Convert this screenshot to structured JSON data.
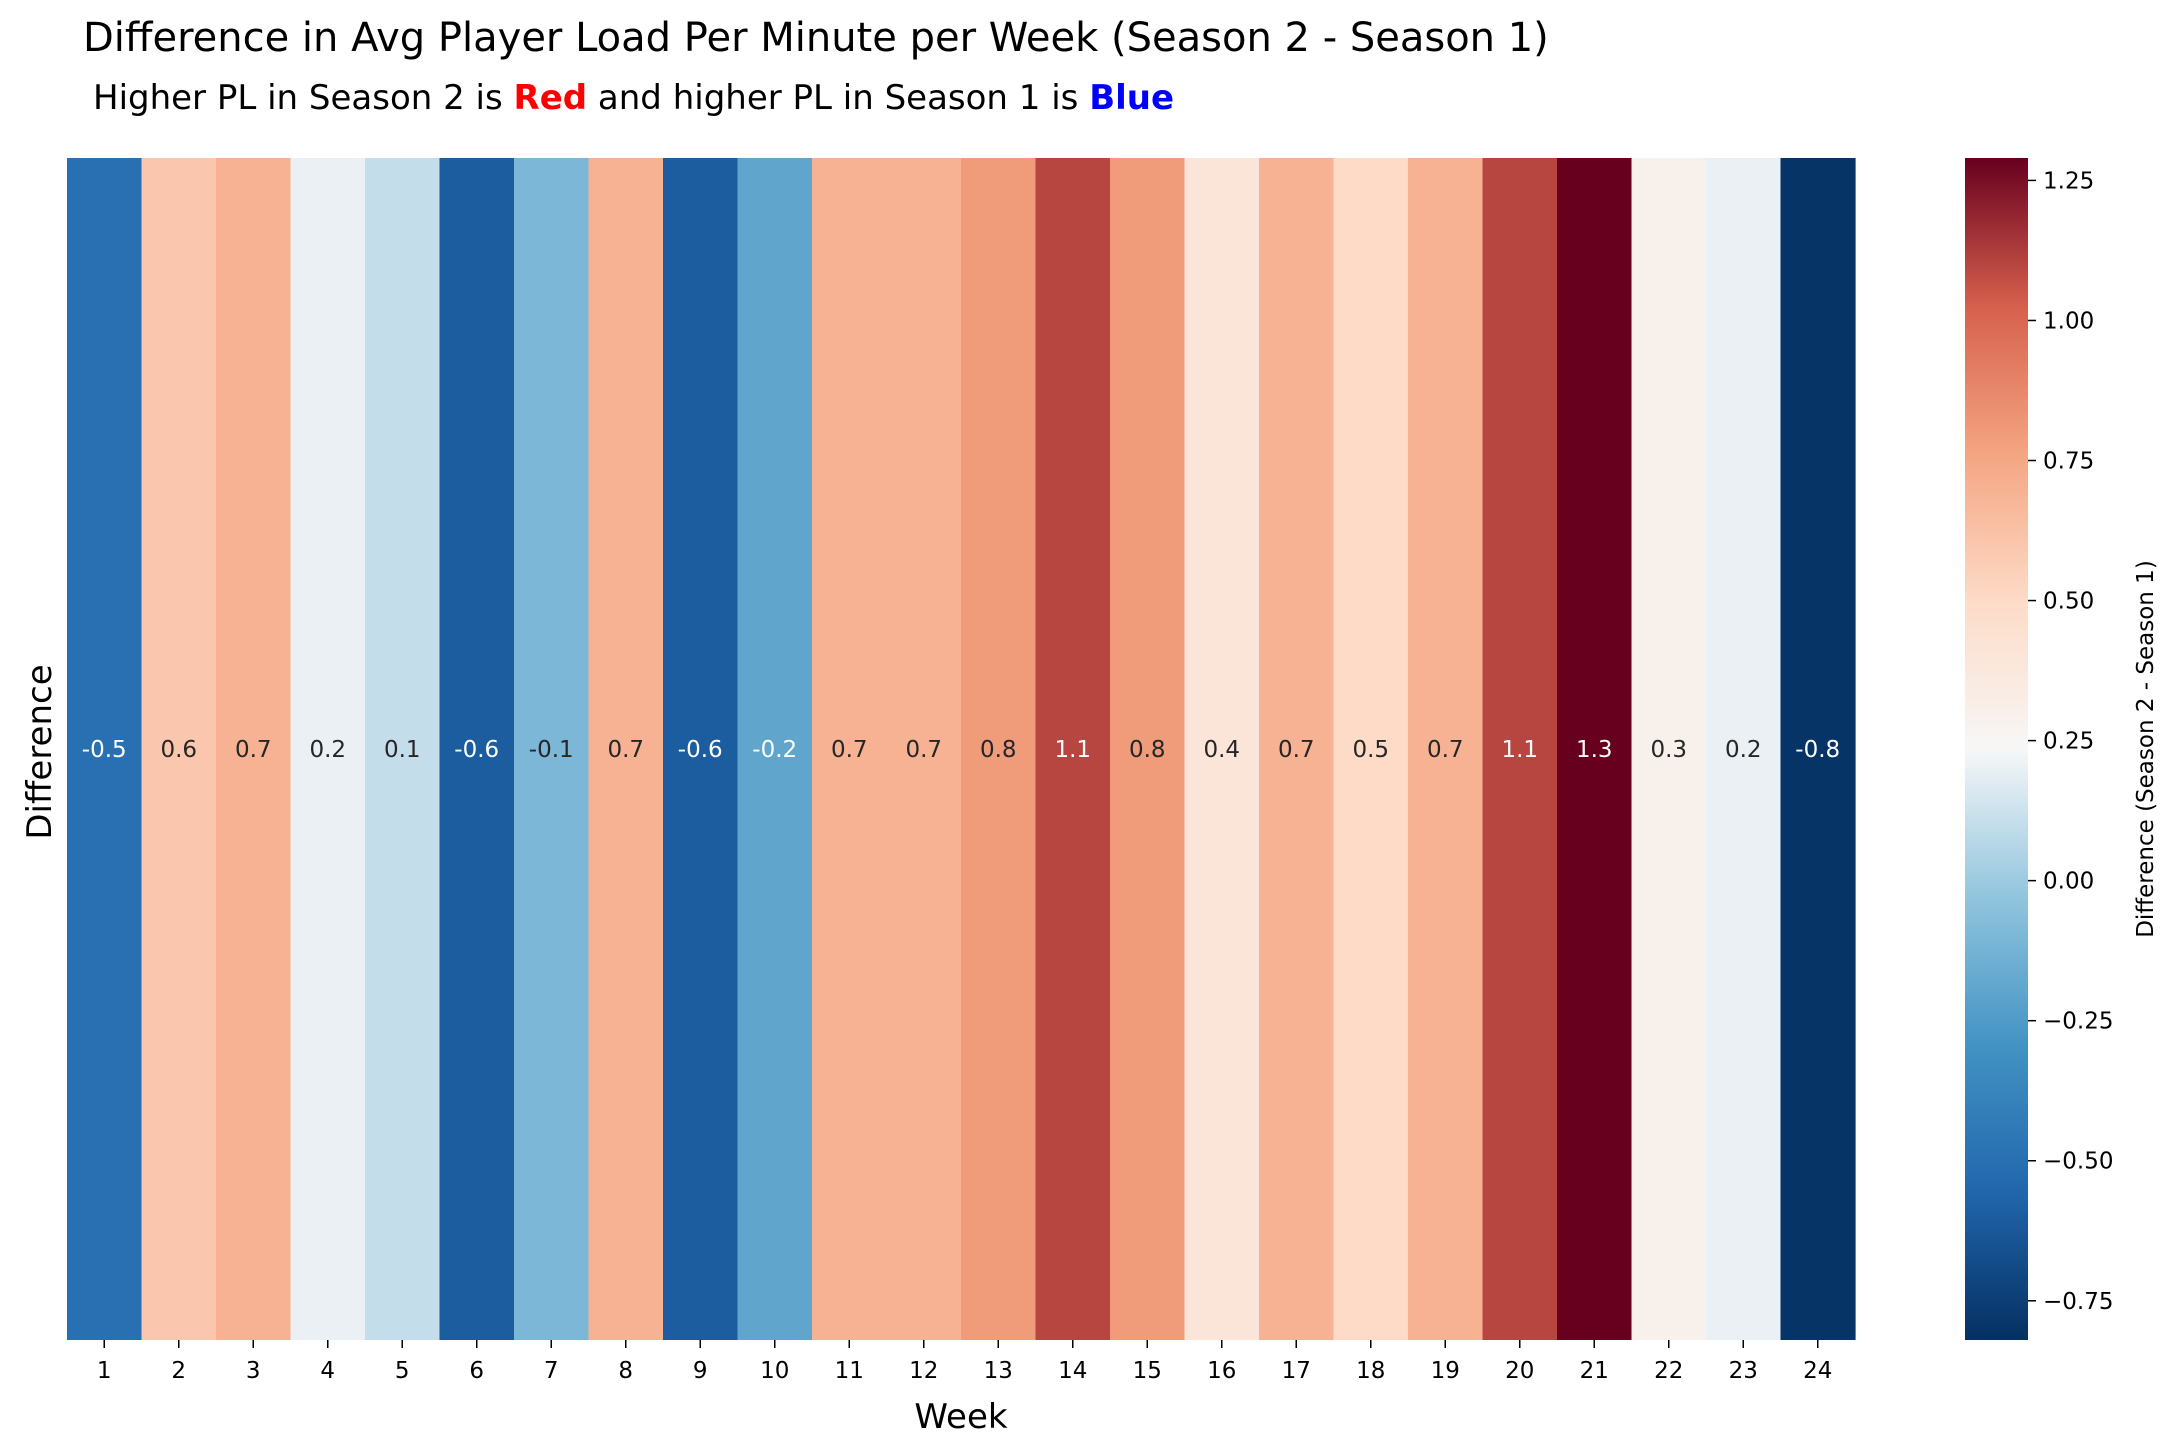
{
  "chart_data": {
    "type": "heatmap",
    "title": "Difference in Avg Player Load Per Minute per Week (Season 2 - Season 1)",
    "subtitle": {
      "prefix": "Higher PL in Season 2 is",
      "red_word": "Red",
      "middle": "and higher PL in Season 1 is",
      "blue_word": "Blue",
      "red_color": "#ff0000",
      "blue_color": "#0000ff"
    },
    "xlabel": "Week",
    "ylabel": "Difference",
    "categories": [
      "1",
      "2",
      "3",
      "4",
      "5",
      "6",
      "7",
      "8",
      "9",
      "10",
      "11",
      "12",
      "13",
      "14",
      "15",
      "16",
      "17",
      "18",
      "19",
      "20",
      "21",
      "22",
      "23",
      "24"
    ],
    "values": [
      -0.5,
      0.6,
      0.7,
      0.2,
      0.1,
      -0.6,
      -0.1,
      0.7,
      -0.6,
      -0.2,
      0.7,
      0.7,
      0.8,
      1.1,
      0.8,
      0.4,
      0.7,
      0.5,
      0.7,
      1.1,
      1.3,
      0.3,
      0.2,
      -0.8
    ],
    "data_labels": [
      "-0.5",
      "0.6",
      "0.7",
      "0.2",
      "0.1",
      "-0.6",
      "-0.1",
      "0.7",
      "-0.6",
      "-0.2",
      "0.7",
      "0.7",
      "0.8",
      "1.1",
      "0.8",
      "0.4",
      "0.7",
      "0.5",
      "0.7",
      "1.1",
      "1.3",
      "0.3",
      "0.2",
      "-0.8"
    ],
    "colorbar": {
      "label": "Difference (Season 2 - Season 1)",
      "colormap": "RdBu_r",
      "vmin": -0.82,
      "vmax": 1.29,
      "ticks": [
        -0.75,
        -0.5,
        -0.25,
        0.0,
        0.25,
        0.5,
        0.75,
        1.0,
        1.25
      ],
      "tick_labels": [
        "−0.75",
        "−0.50",
        "−0.25",
        "0.00",
        "0.25",
        "0.50",
        "0.75",
        "1.00",
        "1.25"
      ]
    },
    "grid": false
  }
}
